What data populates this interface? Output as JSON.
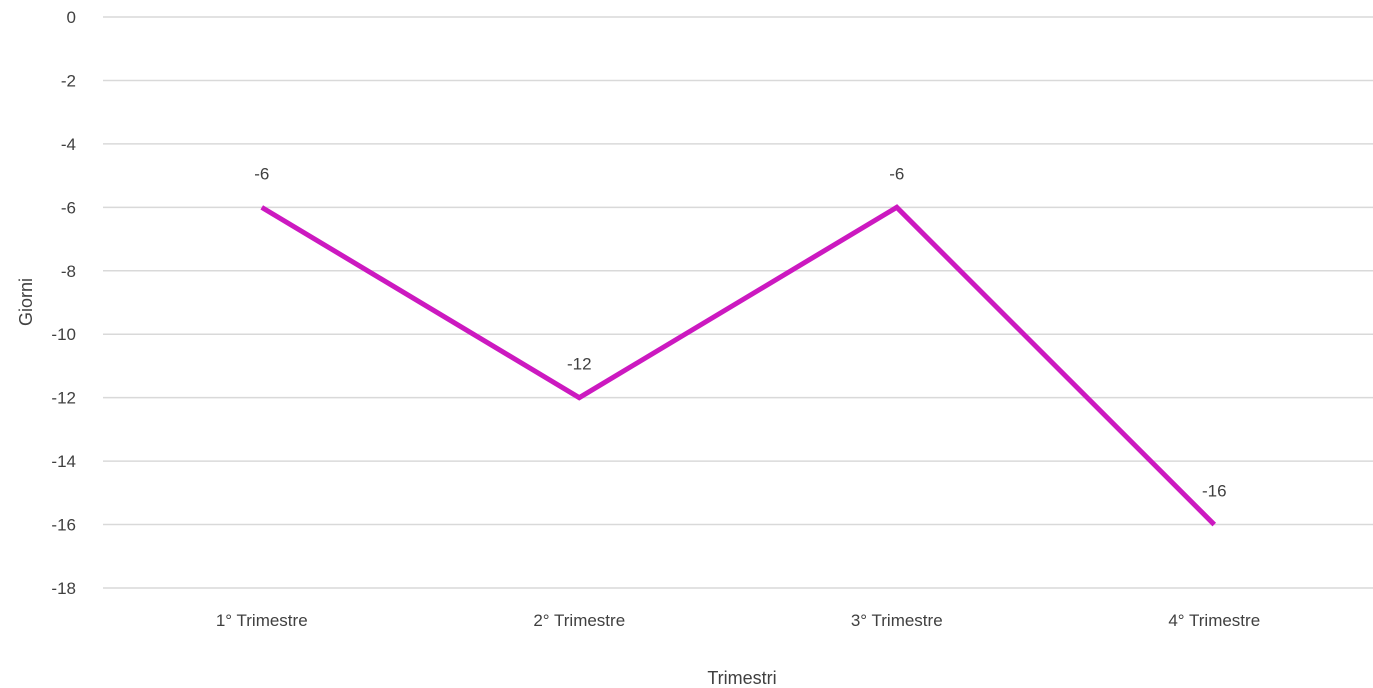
{
  "chart_data": {
    "type": "line",
    "title": "",
    "xlabel": "Trimestri",
    "ylabel": "Giorni",
    "categories": [
      "1° Trimestre",
      "2° Trimestre",
      "3° Trimestre",
      "4° Trimestre"
    ],
    "series": [
      {
        "name": "",
        "values": [
          -6,
          -12,
          -6,
          -16
        ],
        "color": "#cc19c0"
      }
    ],
    "ylim": [
      -18,
      0
    ],
    "ytick_step": 2,
    "yticks": [
      "0",
      "-2",
      "-4",
      "-6",
      "-8",
      "-10",
      "-12",
      "-14",
      "-16",
      "-18"
    ],
    "data_labels": [
      "-6",
      "-12",
      "-6",
      "-16"
    ],
    "grid": true,
    "legend": "none",
    "gridline_color": "#d9d9d9",
    "text_color": "#404040"
  }
}
